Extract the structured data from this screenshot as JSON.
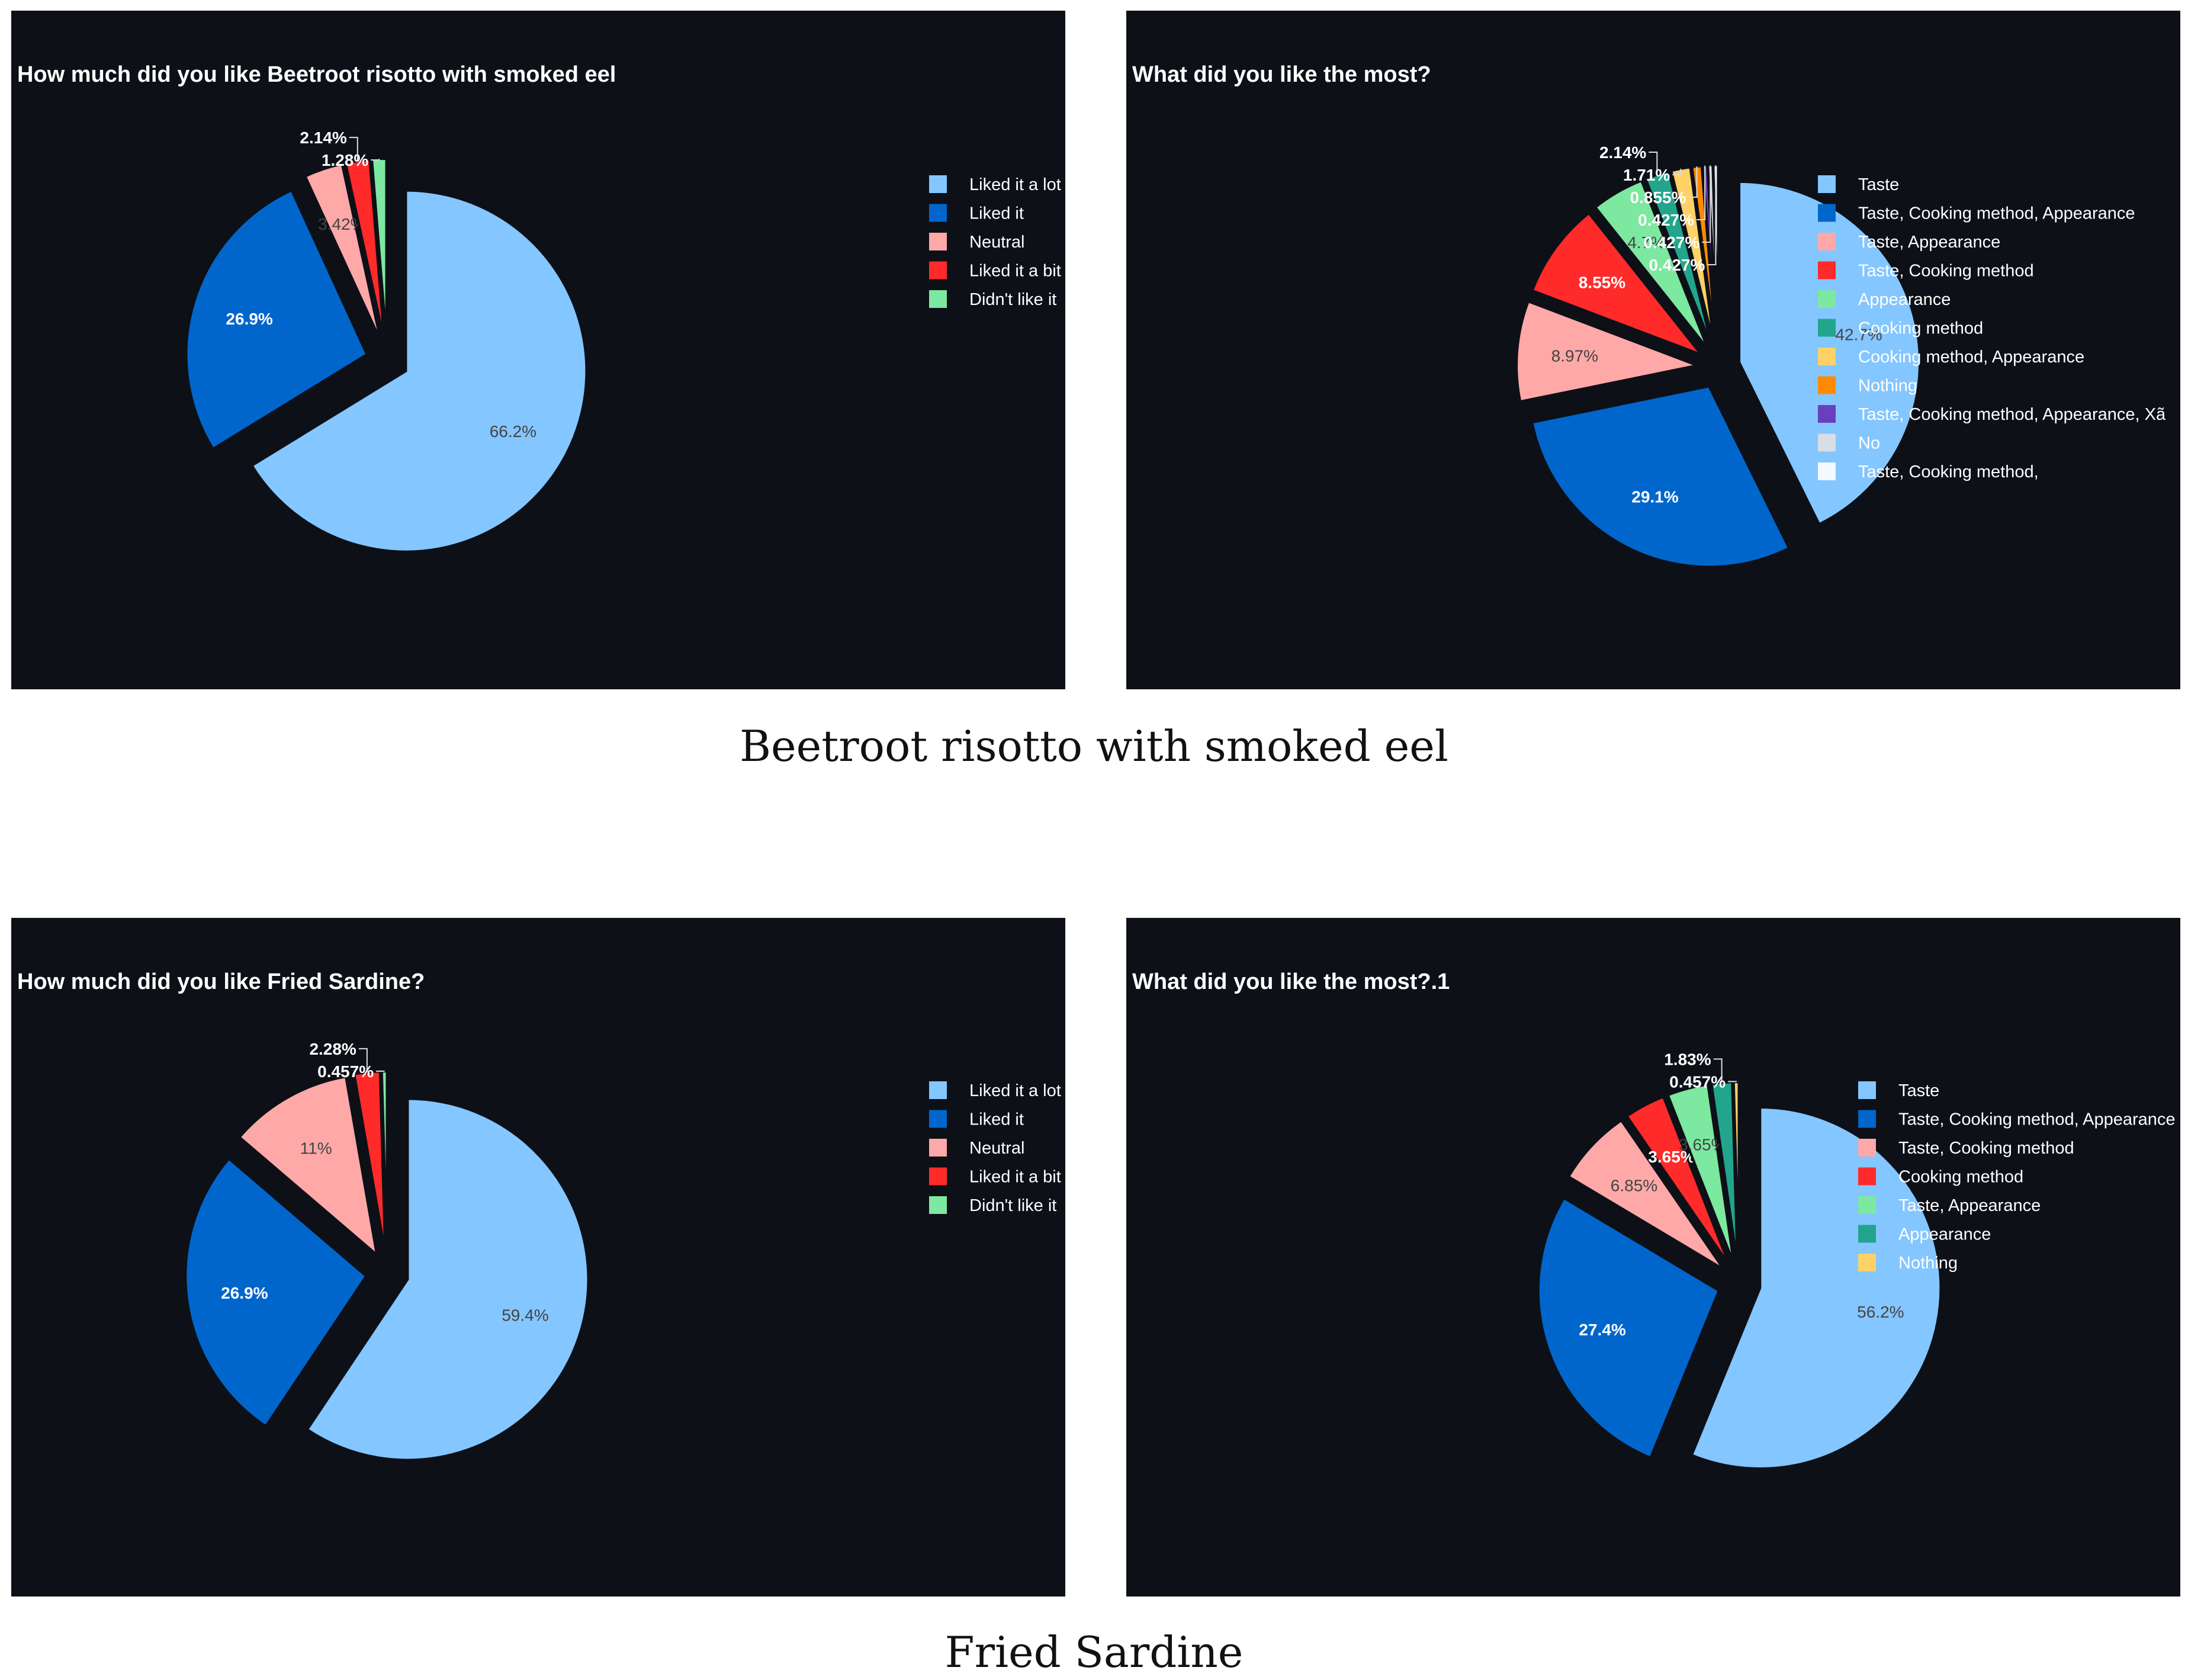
{
  "colors": {
    "background": "#0d1017",
    "legend_text": "#ffffff",
    "caption_text": "#111111"
  },
  "captions": [
    "Beetroot risotto with smoked eel",
    "Fried Sardine"
  ],
  "chart_data": [
    {
      "type": "pie",
      "title": "How much did you like Beetroot risotto with smoked eel",
      "labels": [
        "Liked it a lot",
        "Liked it",
        "Neutral",
        "Liked it a bit",
        "Didn't like it"
      ],
      "values": [
        66.2,
        26.9,
        3.42,
        2.14,
        1.28
      ],
      "value_labels": [
        "66.2%",
        "26.9%",
        "3.42%",
        "2.14%",
        "1.28%"
      ],
      "colors": [
        "#84c6ff",
        "#0066cc",
        "#ffa8a8",
        "#ff2a2a",
        "#7de8a0"
      ],
      "legend_position": "right"
    },
    {
      "type": "pie",
      "title": "What did you like the most?",
      "labels": [
        "Taste",
        "Taste, Cooking method, Appearance",
        "Taste, Appearance",
        "Taste, Cooking method",
        "Appearance",
        "Cooking method",
        "Cooking method, Appearance",
        "Nothing",
        "Taste, Cooking method, Appearance, Xã",
        "No",
        "Taste, Cooking method,"
      ],
      "values": [
        42.7,
        29.1,
        8.97,
        8.55,
        4.7,
        2.14,
        1.71,
        0.855,
        0.427,
        0.427,
        0.427
      ],
      "value_labels": [
        "42.7%",
        "29.1%",
        "8.97%",
        "8.55%",
        "4.7%",
        "2.14%",
        "1.71%",
        "0.855%",
        "0.427%",
        "0.427%",
        "0.427%"
      ],
      "colors": [
        "#84c6ff",
        "#0066cc",
        "#ffa8a8",
        "#ff2a2a",
        "#7de8a0",
        "#22a58c",
        "#ffd166",
        "#ff8a00",
        "#6a3fbf",
        "#d8dde6",
        "#f4f9ff"
      ],
      "legend_position": "right"
    },
    {
      "type": "pie",
      "title": "How much did you like Fried Sardine?",
      "labels": [
        "Liked it a lot",
        "Liked it",
        "Neutral",
        "Liked it a bit",
        "Didn't like it"
      ],
      "values": [
        59.4,
        26.9,
        11,
        2.28,
        0.457
      ],
      "value_labels": [
        "59.4%",
        "26.9%",
        "11%",
        "2.28%",
        "0.457%"
      ],
      "colors": [
        "#84c6ff",
        "#0066cc",
        "#ffa8a8",
        "#ff2a2a",
        "#7de8a0"
      ],
      "legend_position": "right"
    },
    {
      "type": "pie",
      "title": "What did you like the most?.1",
      "labels": [
        "Taste",
        "Taste, Cooking method, Appearance",
        "Taste, Cooking method",
        "Cooking method",
        "Taste, Appearance",
        "Appearance",
        "Nothing"
      ],
      "values": [
        56.2,
        27.4,
        6.85,
        3.65,
        3.65,
        1.83,
        0.457
      ],
      "value_labels": [
        "56.2%",
        "27.4%",
        "6.85%",
        "3.65%",
        "3.65%",
        "1.83%",
        "0.457%"
      ],
      "colors": [
        "#84c6ff",
        "#0066cc",
        "#ffa8a8",
        "#ff2a2a",
        "#7de8a0",
        "#22a58c",
        "#ffd166"
      ],
      "legend_position": "right"
    }
  ]
}
